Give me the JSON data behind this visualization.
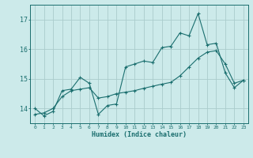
{
  "xlabel": "Humidex (Indice chaleur)",
  "bg_color": "#cceaea",
  "grid_color": "#aacccc",
  "line_color": "#1a6e6e",
  "xlim": [
    -0.5,
    23.5
  ],
  "ylim": [
    13.5,
    17.5
  ],
  "yticks": [
    14,
    15,
    16,
    17
  ],
  "xticks": [
    0,
    1,
    2,
    3,
    4,
    5,
    6,
    7,
    8,
    9,
    10,
    11,
    12,
    13,
    14,
    15,
    16,
    17,
    18,
    19,
    20,
    21,
    22,
    23
  ],
  "jagged_x": [
    0,
    1,
    2,
    3,
    4,
    5,
    6,
    7,
    8,
    9,
    10,
    11,
    12,
    13,
    14,
    15,
    16,
    17,
    18,
    19,
    20,
    21,
    22,
    23
  ],
  "jagged_y": [
    14.0,
    13.75,
    13.9,
    14.6,
    14.65,
    15.05,
    14.85,
    13.8,
    14.1,
    14.15,
    15.4,
    15.5,
    15.6,
    15.55,
    16.05,
    16.1,
    16.55,
    16.45,
    17.2,
    16.15,
    16.2,
    15.2,
    14.7,
    14.95
  ],
  "smooth_x": [
    0,
    1,
    2,
    3,
    4,
    5,
    6,
    7,
    8,
    9,
    10,
    11,
    12,
    13,
    14,
    15,
    16,
    17,
    18,
    19,
    20,
    21,
    22,
    23
  ],
  "smooth_y": [
    13.8,
    13.85,
    14.0,
    14.4,
    14.6,
    14.65,
    14.7,
    14.35,
    14.4,
    14.5,
    14.55,
    14.6,
    14.68,
    14.75,
    14.82,
    14.88,
    15.1,
    15.4,
    15.7,
    15.9,
    15.95,
    15.5,
    14.85,
    14.95
  ]
}
